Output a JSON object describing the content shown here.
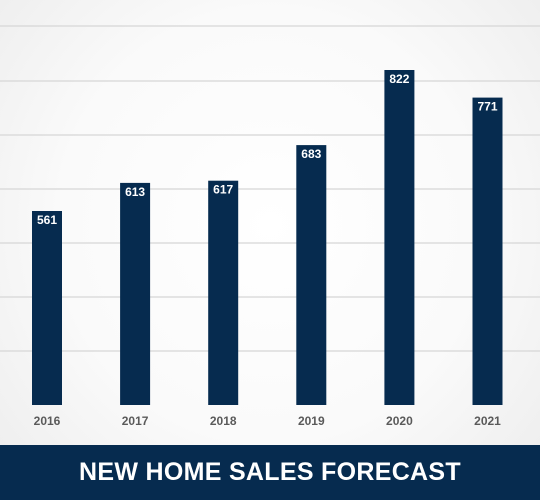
{
  "footer": {
    "title": "NEW HOME SALES FORECAST"
  },
  "colors": {
    "bar": "#062b4f",
    "footer_bg": "#062b4f",
    "grid": "#d6d6d6",
    "tick_text": "#5a5a5a"
  },
  "chart_data": {
    "type": "bar",
    "title": "NEW HOME SALES FORECAST",
    "categories": [
      "2016",
      "2017",
      "2018",
      "2019",
      "2020",
      "2021"
    ],
    "values": [
      561,
      613,
      617,
      683,
      822,
      771
    ],
    "data_labels": [
      "561",
      "613",
      "617",
      "683",
      "822",
      "771"
    ],
    "xlabel": "",
    "ylabel": "",
    "ylim": [
      300,
      850
    ],
    "grid": true,
    "legend": "none"
  }
}
